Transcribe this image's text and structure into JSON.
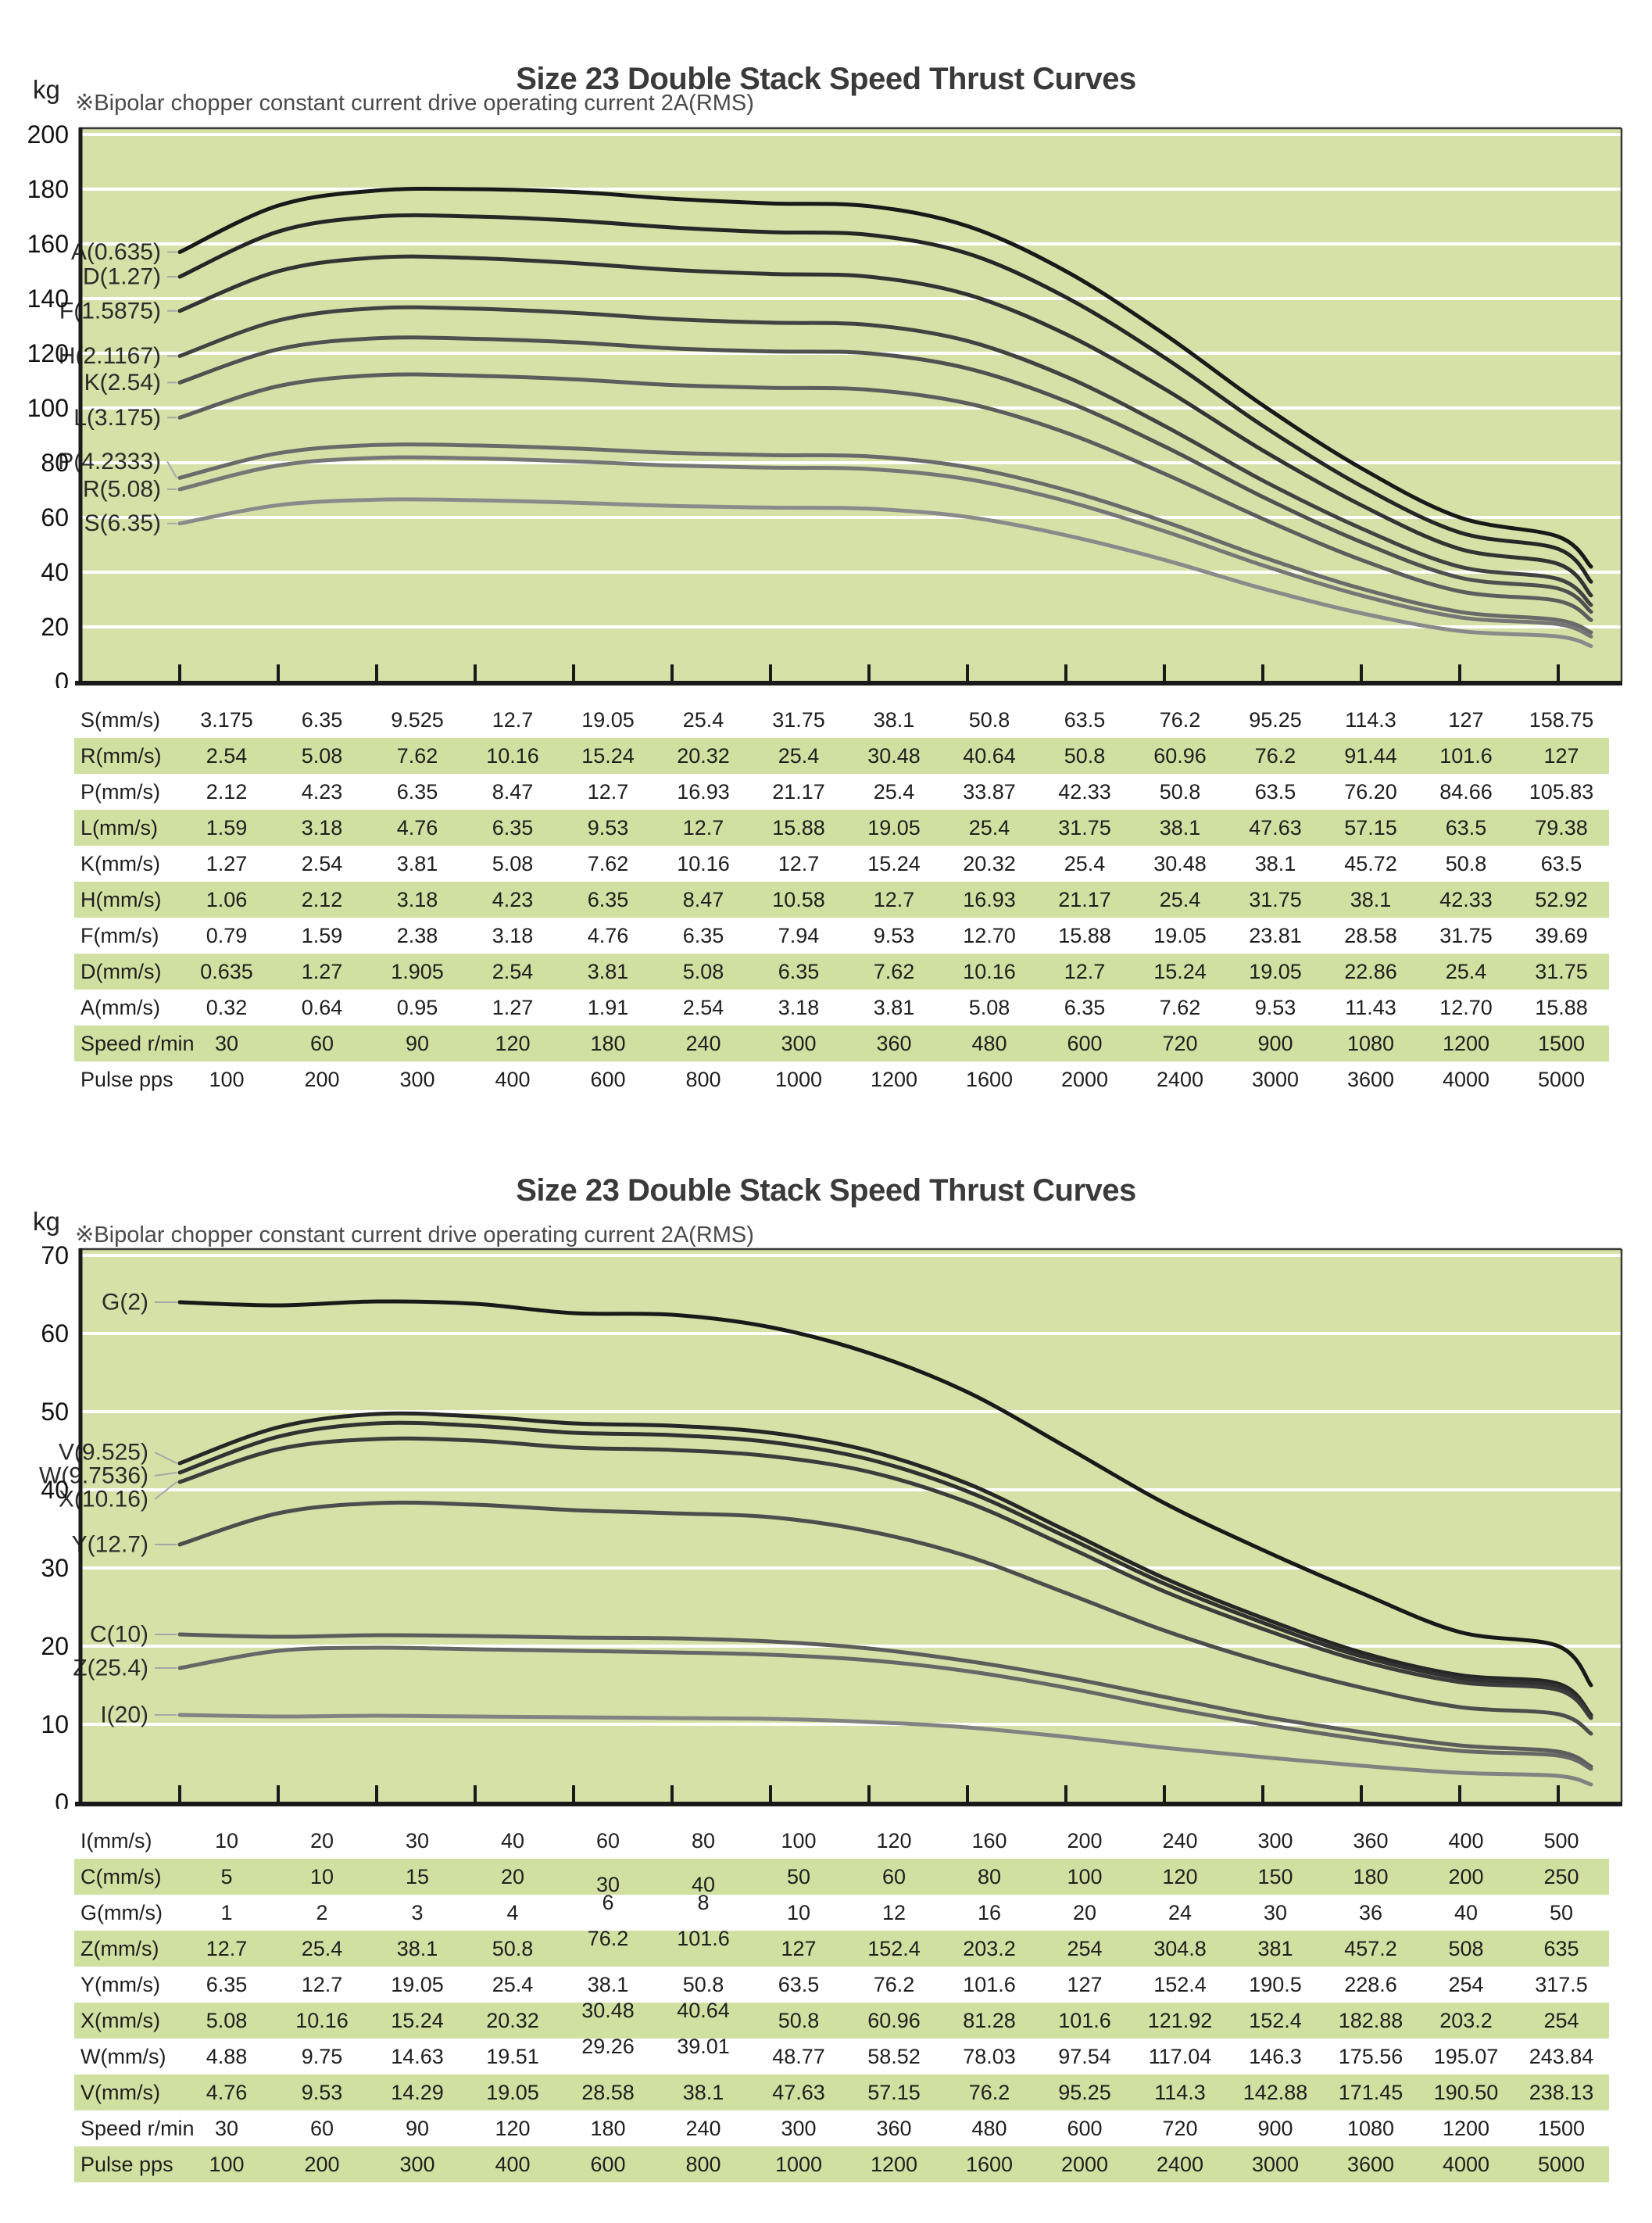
{
  "colors": {
    "plot_bg": "#d5e1a7",
    "table_band": "#cfe0a1",
    "gridline": "#ffffff",
    "axis": "#1a1a1a",
    "plot_border": "#3a3a3a",
    "title_text": "#3a3a3a",
    "note_text": "#4a4a4a",
    "series_label_text": "#2b2b2b",
    "leader_line": "#a7a7a7"
  },
  "chart_data": [
    {
      "type": "line",
      "title": "Size 23 Double Stack Speed Thrust Curves",
      "note": "※Bipolar chopper constant current drive operating current 2A(RMS)",
      "ylabel": "kg",
      "ylim": [
        0,
        200
      ],
      "y_ticks": [
        0,
        20,
        40,
        60,
        80,
        100,
        120,
        140,
        160,
        180,
        200
      ],
      "grid": true,
      "legend_position": "inline-left-labels",
      "x_tick_count": 15,
      "x_axis_note": "15 unlabeled ticks; speeds per lead are given in the table rows below (thrust in kg)",
      "series": [
        {
          "name": "A(0.635)",
          "color": "#191919",
          "label_kg": 157,
          "values": [
            157,
            174,
            179.5,
            180,
            179,
            176.5,
            174.8,
            173.8,
            166.5,
            150,
            127,
            101,
            78,
            60,
            53
          ],
          "end_value": 42
        },
        {
          "name": "D(1.27)",
          "color": "#262626",
          "label_kg": 148,
          "values": [
            148,
            164.5,
            170,
            170,
            168.5,
            166,
            164.3,
            163.3,
            156.5,
            140.5,
            118.5,
            93.5,
            71.5,
            54.5,
            48.5
          ],
          "end_value": 36.5
        },
        {
          "name": "F(1.5875)",
          "color": "#333333",
          "label_kg": 135.5,
          "values": [
            135.5,
            150,
            155,
            154.8,
            153,
            150.5,
            149,
            148,
            141.5,
            127,
            107,
            84.5,
            64.5,
            48.5,
            43
          ],
          "end_value": 31.5
        },
        {
          "name": "H(2.1167)",
          "color": "#424242",
          "label_kg": 119,
          "values": [
            119,
            132,
            136.5,
            136.3,
            134.8,
            132.5,
            131.2,
            130.4,
            124.5,
            111.5,
            93.5,
            73.5,
            56,
            42,
            37.5
          ],
          "end_value": 28
        },
        {
          "name": "K(2.54)",
          "color": "#505050",
          "label_kg": 109.3,
          "values": [
            109.3,
            121.5,
            125.5,
            125.3,
            124,
            121.8,
            120.7,
            120,
            114.5,
            102.5,
            86,
            67.5,
            51,
            38,
            34
          ],
          "end_value": 25.5
        },
        {
          "name": "L(3.175)",
          "color": "#5d5d5d",
          "label_kg": 96.5,
          "values": [
            96.5,
            108,
            112,
            111.8,
            110.5,
            108.4,
            107.4,
            106.7,
            101.7,
            91,
            76,
            59.5,
            44.5,
            33,
            29.5
          ],
          "end_value": 22.5
        },
        {
          "name": "P(4.2333)",
          "color": "#6a6a6a",
          "label_kg": 80.5,
          "values": [
            74.5,
            83.5,
            86.5,
            86.3,
            85.2,
            83.6,
            82.8,
            82.3,
            78.4,
            70,
            58.5,
            45.5,
            34,
            25.5,
            22.5
          ],
          "end_value": 18
        },
        {
          "name": "R(5.08)",
          "color": "#767676",
          "label_kg": 70.3,
          "values": [
            70.3,
            79,
            81.8,
            81.6,
            80.5,
            79,
            78.2,
            77.7,
            74,
            66,
            55,
            42.5,
            31.5,
            23.5,
            21
          ],
          "end_value": 16.5
        },
        {
          "name": "S(6.35)",
          "color": "#8a8a8a",
          "label_kg": 57.8,
          "values": [
            57.8,
            64.5,
            66.5,
            66.3,
            65.4,
            64.2,
            63.6,
            63.2,
            60.2,
            53.5,
            44.5,
            34,
            25,
            18.5,
            16.5
          ],
          "end_value": 13
        }
      ],
      "table": {
        "rows": [
          {
            "header": "S(mm/s)",
            "cells": [
              "3.175",
              "6.35",
              "9.525",
              "12.7",
              "19.05",
              "25.4",
              "31.75",
              "38.1",
              "50.8",
              "63.5",
              "76.2",
              "95.25",
              "114.3",
              "127",
              "158.75"
            ]
          },
          {
            "header": "R(mm/s)",
            "cells": [
              "2.54",
              "5.08",
              "7.62",
              "10.16",
              "15.24",
              "20.32",
              "25.4",
              "30.48",
              "40.64",
              "50.8",
              "60.96",
              "76.2",
              "91.44",
              "101.6",
              "127"
            ]
          },
          {
            "header": "P(mm/s)",
            "cells": [
              "2.12",
              "4.23",
              "6.35",
              "8.47",
              "12.7",
              "16.93",
              "21.17",
              "25.4",
              "33.87",
              "42.33",
              "50.8",
              "63.5",
              "76.20",
              "84.66",
              "105.83"
            ]
          },
          {
            "header": "L(mm/s)",
            "cells": [
              "1.59",
              "3.18",
              "4.76",
              "6.35",
              "9.53",
              "12.7",
              "15.88",
              "19.05",
              "25.4",
              "31.75",
              "38.1",
              "47.63",
              "57.15",
              "63.5",
              "79.38"
            ]
          },
          {
            "header": "K(mm/s)",
            "cells": [
              "1.27",
              "2.54",
              "3.81",
              "5.08",
              "7.62",
              "10.16",
              "12.7",
              "15.24",
              "20.32",
              "25.4",
              "30.48",
              "38.1",
              "45.72",
              "50.8",
              "63.5"
            ]
          },
          {
            "header": "H(mm/s)",
            "cells": [
              "1.06",
              "2.12",
              "3.18",
              "4.23",
              "6.35",
              "8.47",
              "10.58",
              "12.7",
              "16.93",
              "21.17",
              "25.4",
              "31.75",
              "38.1",
              "42.33",
              "52.92"
            ]
          },
          {
            "header": "F(mm/s)",
            "cells": [
              "0.79",
              "1.59",
              "2.38",
              "3.18",
              "4.76",
              "6.35",
              "7.94",
              "9.53",
              "12.70",
              "15.88",
              "19.05",
              "23.81",
              "28.58",
              "31.75",
              "39.69"
            ]
          },
          {
            "header": "D(mm/s)",
            "cells": [
              "0.635",
              "1.27",
              "1.905",
              "2.54",
              "3.81",
              "5.08",
              "6.35",
              "7.62",
              "10.16",
              "12.7",
              "15.24",
              "19.05",
              "22.86",
              "25.4",
              "31.75"
            ]
          },
          {
            "header": "A(mm/s)",
            "cells": [
              "0.32",
              "0.64",
              "0.95",
              "1.27",
              "1.91",
              "2.54",
              "3.18",
              "3.81",
              "5.08",
              "6.35",
              "7.62",
              "9.53",
              "11.43",
              "12.70",
              "15.88"
            ]
          },
          {
            "header": "Speed r/min",
            "cells": [
              "30",
              "60",
              "90",
              "120",
              "180",
              "240",
              "300",
              "360",
              "480",
              "600",
              "720",
              "900",
              "1080",
              "1200",
              "1500"
            ]
          },
          {
            "header": "Pulse pps",
            "cells": [
              "100",
              "200",
              "300",
              "400",
              "600",
              "800",
              "1000",
              "1200",
              "1600",
              "2000",
              "2400",
              "3000",
              "3600",
              "4000",
              "5000"
            ]
          }
        ]
      }
    },
    {
      "type": "line",
      "title": "Size 23 Double Stack Speed Thrust Curves",
      "note": "※Bipolar chopper constant current drive operating current 2A(RMS)",
      "ylabel": "kg",
      "ylim": [
        0,
        70
      ],
      "y_ticks": [
        0,
        10,
        20,
        30,
        40,
        50,
        60,
        70
      ],
      "grid": true,
      "legend_position": "inline-left-labels",
      "x_tick_count": 15,
      "x_axis_note": "15 unlabeled ticks; speeds per lead are given in the table rows below (thrust in kg)",
      "series": [
        {
          "name": "G(2)",
          "color": "#191919",
          "label_kg": 64,
          "values": [
            64,
            63.6,
            64.1,
            63.8,
            62.6,
            62.4,
            60.8,
            57.5,
            52.5,
            45.5,
            38.3,
            32.3,
            26.8,
            21.8,
            20
          ],
          "end_value": 15
        },
        {
          "name": "V(9.525)",
          "color": "#262626",
          "label_kg": 44.8,
          "values": [
            43.4,
            48,
            49.7,
            49.4,
            48.5,
            48.2,
            47.3,
            45,
            40.8,
            34.8,
            28.7,
            23.6,
            19.2,
            16.3,
            15.2
          ],
          "end_value": 11.2
        },
        {
          "name": "W(9.7536)",
          "color": "#313131",
          "label_kg": 41.8,
          "values": [
            42.2,
            46.8,
            48.5,
            48.2,
            47.3,
            47,
            46.1,
            43.9,
            39.8,
            34,
            28,
            23,
            18.7,
            15.9,
            14.8
          ],
          "end_value": 11
        },
        {
          "name": "X(10.16)",
          "color": "#3c3c3c",
          "label_kg": 38.8,
          "values": [
            41,
            45.2,
            46.5,
            46.3,
            45.4,
            45.1,
            44.3,
            42.3,
            38.4,
            32.8,
            27,
            22.2,
            18.1,
            15.4,
            14.4
          ],
          "end_value": 10.8
        },
        {
          "name": "Y(12.7)",
          "color": "#4d4d4d",
          "label_kg": 33,
          "values": [
            33,
            37,
            38.3,
            38.1,
            37.4,
            37,
            36.5,
            34.7,
            31.5,
            26.8,
            22,
            18,
            14.7,
            12.2,
            11.3
          ],
          "end_value": 8.8
        },
        {
          "name": "C(10)",
          "color": "#5c5c5c",
          "label_kg": 21.5,
          "values": [
            21.5,
            21.2,
            21.4,
            21.3,
            21.1,
            21,
            20.6,
            19.7,
            18.1,
            16,
            13.5,
            11,
            9,
            7.3,
            6.5
          ],
          "end_value": 4.6
        },
        {
          "name": "Z(25.4)",
          "color": "#676767",
          "label_kg": 17.2,
          "values": [
            17.2,
            19.4,
            19.8,
            19.6,
            19.4,
            19.2,
            18.9,
            18.2,
            16.8,
            14.7,
            12.2,
            10,
            8.1,
            6.6,
            6
          ],
          "end_value": 4.3
        },
        {
          "name": "I(20)",
          "color": "#828282",
          "label_kg": 11.2,
          "values": [
            11.2,
            11,
            11.1,
            11,
            10.9,
            10.8,
            10.7,
            10.3,
            9.6,
            8.4,
            7,
            5.8,
            4.7,
            3.8,
            3.4
          ],
          "end_value": 2.3
        }
      ],
      "table": {
        "rows": [
          {
            "header": "I(mm/s)",
            "cells": [
              "10",
              "20",
              "30",
              "40",
              "60",
              "80",
              "100",
              "120",
              "160",
              "200",
              "240",
              "300",
              "360",
              "400",
              "500"
            ]
          },
          {
            "header": "C(mm/s)",
            "cells": [
              "5",
              "10",
              "15",
              "20",
              "30",
              "40",
              "50",
              "60",
              "80",
              "100",
              "120",
              "150",
              "180",
              "200",
              "250"
            ],
            "cell_shift": {
              "cols": [
                4,
                5
              ],
              "dir": "down"
            }
          },
          {
            "header": "G(mm/s)",
            "cells": [
              "1",
              "2",
              "3",
              "4",
              "6",
              "8",
              "10",
              "12",
              "16",
              "20",
              "24",
              "30",
              "36",
              "40",
              "50"
            ],
            "cell_shift": {
              "cols": [
                4,
                5
              ],
              "dir": "up"
            }
          },
          {
            "header": "Z(mm/s)",
            "cells": [
              "12.7",
              "25.4",
              "38.1",
              "50.8",
              "76.2",
              "101.6",
              "127",
              "152.4",
              "203.2",
              "254",
              "304.8",
              "381",
              "457.2",
              "508",
              "635"
            ],
            "cell_shift": {
              "cols": [
                4,
                5
              ],
              "dir": "up"
            }
          },
          {
            "header": "Y(mm/s)",
            "cells": [
              "6.35",
              "12.7",
              "19.05",
              "25.4",
              "38.1",
              "50.8",
              "63.5",
              "76.2",
              "101.6",
              "127",
              "152.4",
              "190.5",
              "228.6",
              "254",
              "317.5"
            ]
          },
          {
            "header": "X(mm/s)",
            "cells": [
              "5.08",
              "10.16",
              "15.24",
              "20.32",
              "30.48",
              "40.64",
              "50.8",
              "60.96",
              "81.28",
              "101.6",
              "121.92",
              "152.4",
              "182.88",
              "203.2",
              "254"
            ],
            "cell_shift": {
              "cols": [
                4,
                5
              ],
              "dir": "up"
            }
          },
          {
            "header": "W(mm/s)",
            "cells": [
              "4.88",
              "9.75",
              "14.63",
              "19.51",
              "29.26",
              "39.01",
              "48.77",
              "58.52",
              "78.03",
              "97.54",
              "117.04",
              "146.3",
              "175.56",
              "195.07",
              "243.84"
            ],
            "cell_shift": {
              "cols": [
                4,
                5
              ],
              "dir": "up"
            }
          },
          {
            "header": "V(mm/s)",
            "cells": [
              "4.76",
              "9.53",
              "14.29",
              "19.05",
              "28.58",
              "38.1",
              "47.63",
              "57.15",
              "76.2",
              "95.25",
              "114.3",
              "142.88",
              "171.45",
              "190.50",
              "238.13"
            ]
          },
          {
            "header": "Speed r/min",
            "cells": [
              "30",
              "60",
              "90",
              "120",
              "180",
              "240",
              "300",
              "360",
              "480",
              "600",
              "720",
              "900",
              "1080",
              "1200",
              "1500"
            ]
          },
          {
            "header": "Pulse pps",
            "cells": [
              "100",
              "200",
              "300",
              "400",
              "600",
              "800",
              "1000",
              "1200",
              "1600",
              "2000",
              "2400",
              "3000",
              "3600",
              "4000",
              "5000"
            ]
          }
        ]
      }
    }
  ]
}
